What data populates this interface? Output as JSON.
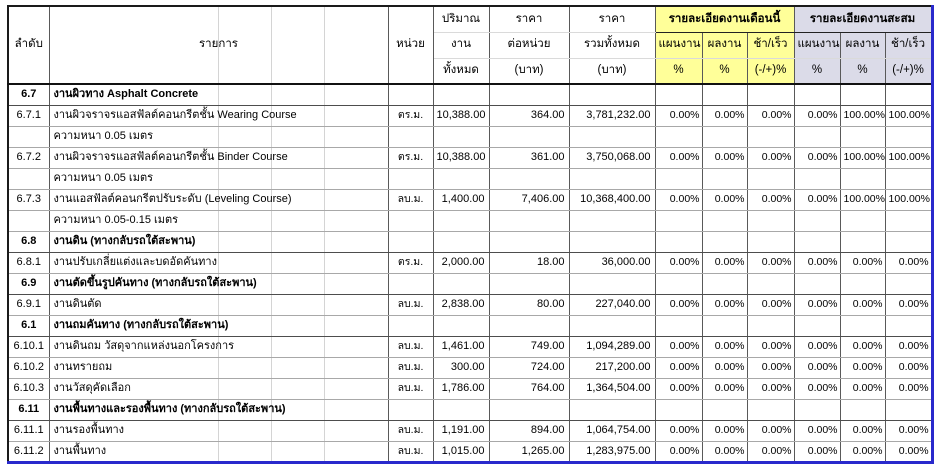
{
  "colors": {
    "month_group_bg": "#FFFF99",
    "cumulative_group_bg": "#DBDBE8",
    "pagebreak_blue": "#2929CC"
  },
  "header": {
    "no": "ลำดับ",
    "item": "รายการ",
    "unit": "หน่วย",
    "qty": [
      "ปริมาณ",
      "งาน",
      "ทั้งหมด"
    ],
    "unit_price": [
      "ราคา",
      "ต่อหน่วย",
      "(บาท)"
    ],
    "total": [
      "ราคา",
      "รวมทั้งหมด",
      "(บาท)"
    ],
    "month_group": "รายละเอียดงานเดือนนี้",
    "cum_group": "รายละะเอียดงานสะสม",
    "cum_group_label": "รายละเอียดงานสะสม",
    "plan": [
      "แผนงาน",
      "%"
    ],
    "actual": [
      "ผลงาน",
      "%"
    ],
    "diff": [
      "ช้า/เร็ว",
      "(-/+)%"
    ]
  },
  "rows": [
    {
      "no": "6.7",
      "item": "งานผิวทาง Asphalt Concrete",
      "section": true
    },
    {
      "no": "6.7.1",
      "item": "งานผิวจราจรแอสฟัลต์คอนกรีตชั้น Wearing Course",
      "unit": "ตร.ม.",
      "qty": "10,388.00",
      "unit_price": "364.00",
      "total": "3,781,232.00",
      "m_plan": "0.00%",
      "m_actual": "0.00%",
      "m_diff": "0.00%",
      "c_plan": "0.00%",
      "c_actual": "100.00%",
      "c_diff": "100.00%"
    },
    {
      "no": "",
      "item": "ความหนา 0.05 เมตร"
    },
    {
      "no": "6.7.2",
      "item": "งานผิวจราจรแอสฟัลต์คอนกรีตชั้น Binder Course",
      "unit": "ตร.ม.",
      "qty": "10,388.00",
      "unit_price": "361.00",
      "total": "3,750,068.00",
      "m_plan": "0.00%",
      "m_actual": "0.00%",
      "m_diff": "0.00%",
      "c_plan": "0.00%",
      "c_actual": "100.00%",
      "c_diff": "100.00%"
    },
    {
      "no": "",
      "item": "ความหนา 0.05 เมตร"
    },
    {
      "no": "6.7.3",
      "item": "งานแอสฟัลต์คอนกรีตปรับระดับ (Leveling Course)",
      "unit": "ลบ.ม.",
      "qty": "1,400.00",
      "unit_price": "7,406.00",
      "total": "10,368,400.00",
      "m_plan": "0.00%",
      "m_actual": "0.00%",
      "m_diff": "0.00%",
      "c_plan": "0.00%",
      "c_actual": "100.00%",
      "c_diff": "100.00%"
    },
    {
      "no": "",
      "item": "ความหนา 0.05-0.15 เมตร"
    },
    {
      "no": "6.8",
      "item": "งานดิน (ทางกลับรถใต้สะพาน)",
      "section": true
    },
    {
      "no": "6.8.1",
      "item": "งานปรับเกลี่ยแต่งและบดอัดคันทาง",
      "unit": "ตร.ม.",
      "qty": "2,000.00",
      "unit_price": "18.00",
      "total": "36,000.00",
      "m_plan": "0.00%",
      "m_actual": "0.00%",
      "m_diff": "0.00%",
      "c_plan": "0.00%",
      "c_actual": "0.00%",
      "c_diff": "0.00%"
    },
    {
      "no": "6.9",
      "item": "งานตัดขึ้นรูปคันทาง (ทางกลับรถใต้สะพาน)",
      "section": true
    },
    {
      "no": "6.9.1",
      "item": "งานดินตัด",
      "unit": "ลบ.ม.",
      "qty": "2,838.00",
      "unit_price": "80.00",
      "total": "227,040.00",
      "m_plan": "0.00%",
      "m_actual": "0.00%",
      "m_diff": "0.00%",
      "c_plan": "0.00%",
      "c_actual": "0.00%",
      "c_diff": "0.00%"
    },
    {
      "no": "6.1",
      "item": "งานถมคันทาง (ทางกลับรถใต้สะพาน)",
      "section": true
    },
    {
      "no": "6.10.1",
      "item": "งานดินถม วัสดุจากแหล่งนอกโครงการ",
      "unit": "ลบ.ม.",
      "qty": "1,461.00",
      "unit_price": "749.00",
      "total": "1,094,289.00",
      "m_plan": "0.00%",
      "m_actual": "0.00%",
      "m_diff": "0.00%",
      "c_plan": "0.00%",
      "c_actual": "0.00%",
      "c_diff": "0.00%"
    },
    {
      "no": "6.10.2",
      "item": "งานทรายถม",
      "unit": "ลบ.ม.",
      "qty": "300.00",
      "unit_price": "724.00",
      "total": "217,200.00",
      "m_plan": "0.00%",
      "m_actual": "0.00%",
      "m_diff": "0.00%",
      "c_plan": "0.00%",
      "c_actual": "0.00%",
      "c_diff": "0.00%"
    },
    {
      "no": "6.10.3",
      "item": "งานวัสดุคัดเลือก",
      "unit": "ลบ.ม.",
      "qty": "1,786.00",
      "unit_price": "764.00",
      "total": "1,364,504.00",
      "m_plan": "0.00%",
      "m_actual": "0.00%",
      "m_diff": "0.00%",
      "c_plan": "0.00%",
      "c_actual": "0.00%",
      "c_diff": "0.00%"
    },
    {
      "no": "6.11",
      "item": "งานพื้นทางและรองพื้นทาง (ทางกลับรถใต้สะพาน)",
      "section": true
    },
    {
      "no": "6.11.1",
      "item": "งานรองพื้นทาง",
      "unit": "ลบ.ม.",
      "qty": "1,191.00",
      "unit_price": "894.00",
      "total": "1,064,754.00",
      "m_plan": "0.00%",
      "m_actual": "0.00%",
      "m_diff": "0.00%",
      "c_plan": "0.00%",
      "c_actual": "0.00%",
      "c_diff": "0.00%"
    },
    {
      "no": "6.11.2",
      "item": "งานพื้นทาง",
      "unit": "ลบ.ม.",
      "qty": "1,015.00",
      "unit_price": "1,265.00",
      "total": "1,283,975.00",
      "m_plan": "0.00%",
      "m_actual": "0.00%",
      "m_diff": "0.00%",
      "c_plan": "0.00%",
      "c_actual": "0.00%",
      "c_diff": "0.00%"
    }
  ]
}
